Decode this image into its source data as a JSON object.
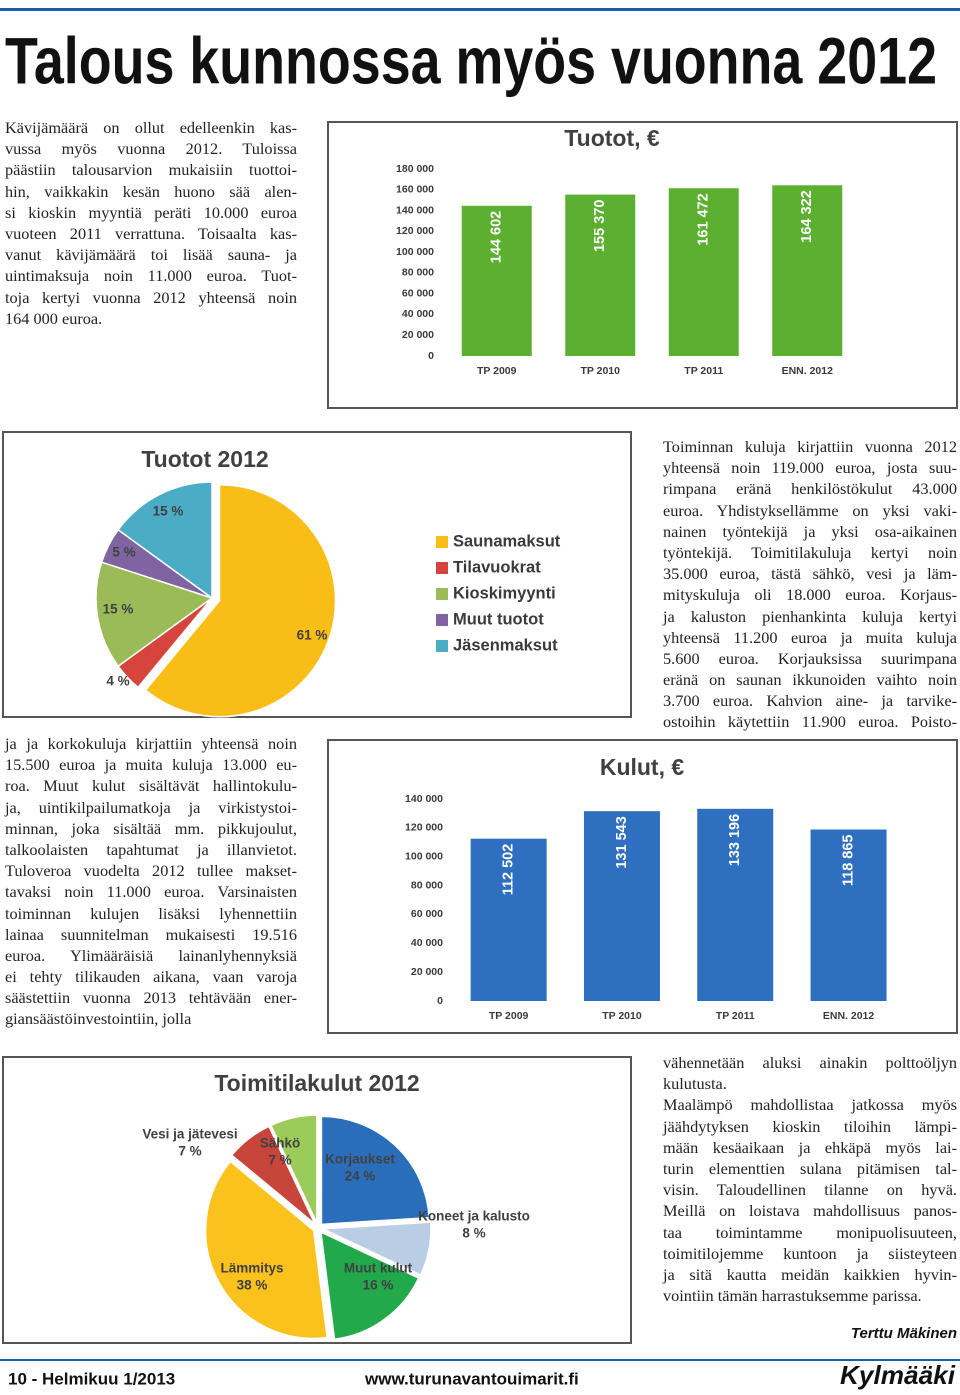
{
  "title": "Talous kunnossa myös vuonna 2012",
  "text_blocks": [
    [
      [
        "Kävijämäärä on ollut edelleenkin kas-",
        "vussa myös vuonna 2012. Tuloissa",
        "päästiin talousarvion mukaisiin tuottoi-",
        "hin, vaikkakin kesän huono sää alen-",
        "si kioskin myyntiä peräti 10.000 euroa",
        "vuoteen 2011 verrattuna. Toisaalta kas-",
        "vanut kävijämäärä toi lisää sauna- ja",
        "uintimaksuja noin 11.000 euroa. Tuot-",
        "toja kertyi vuonna 2012 yhteensä noin",
        "164 000 euroa."
      ]
    ],
    [
      [
        "Toiminnan kuluja kirjattiin vuonna 2012",
        "yhteensä noin 119.000 euroa, josta suu-",
        "rimpana eränä henkilöstökulut 43.000",
        "euroa. Yhdistyksellämme on yksi vaki-",
        "nainen työntekijä ja yksi osa-aikainen",
        "työntekijä. Toimitilakuluja kertyi noin",
        "35.000 euroa, tästä sähkö, vesi ja läm-",
        "mityskuluja oli 18.000 euroa. Korjaus-",
        "ja kaluston pienhankinta kuluja kertyi",
        "yhteensä 11.200 euroa ja muita kuluja",
        "5.600 euroa. Korjauksissa suurimpana",
        "eränä on saunan ikkunoiden vaihto noin",
        "3.700 euroa. Kahvion aine- ja tarvike-",
        "ostoihin käytettiin 11.900 euroa. Poisto-"
      ]
    ],
    [
      [
        "ja ja korkokuluja kirjattiin yhteensä noin",
        "15.500 euroa ja muita kuluja 13.000 eu-",
        "roa. Muut kulut sisältävät hallintokulu-",
        "ja, uintikilpailumatkoja ja virkistystoi-",
        "minnan, joka sisältää mm. pikkujoulut,",
        "talkoolaisten tapahtumat ja illanvietot.",
        "Tuloveroa vuodelta 2012 tullee makset-",
        "tavaksi noin 11.000 euroa. Varsinaisten",
        "toiminnan kulujen lisäksi lyhennettiin",
        "lainaa suunnitelman mukaisesti 19.516",
        "euroa. Ylimääräisiä lainanlyhennyksiä",
        "ei tehty tilikauden aikana, vaan varoja",
        "säästettiin vuonna 2013 tehtävään ener-",
        "giansäästöinvestointiin, jolla"
      ]
    ],
    [
      [
        "vähennetään aluksi ainakin polttoöljyn",
        "kulutusta."
      ],
      [
        "Maalämpö mahdollistaa jatkossa myös",
        "jäähdytyksen kioskin tiloihin lämpi-",
        "mään kesäaikaan ja ehkäpä myös lai-",
        "turin elementtien sulana pitämisen tal-",
        "visin. Taloudellinen tilanne on hyvä.",
        "Meillä on loistava mahdollisuus panos-",
        "taa toimintamme monipuolisuuteen,",
        "toimitilojemme kuntoon ja siisteyteen",
        "ja sitä kautta meidän kaikkien hyvin-",
        "vointiin tämän harrastuksemme parissa."
      ]
    ]
  ],
  "chart_data": [
    {
      "type": "bar",
      "title": "Tuotot, €",
      "categories": [
        "TP 2009",
        "TP 2010",
        "TP 2011",
        "ENN. 2012"
      ],
      "values": [
        144602,
        155370,
        161472,
        164322
      ],
      "value_labels": [
        "144 602",
        "155 370",
        "161 472",
        "164 322"
      ],
      "color": "#5cb030",
      "ylim": [
        0,
        180000
      ],
      "yticks": [
        0,
        {
          "value": 20000,
          "label": "20 000"
        },
        {
          "value": 40000,
          "label": "40 000"
        },
        {
          "value": 60000,
          "label": "60 000"
        },
        {
          "value": 80000,
          "label": "80 000"
        },
        {
          "value": 100000,
          "label": "100 000"
        },
        {
          "value": 120000,
          "label": "120 000"
        },
        {
          "value": 140000,
          "label": "140 000"
        },
        {
          "value": 160000,
          "label": "160 000"
        },
        {
          "value": 180000,
          "label": "180 000"
        }
      ],
      "grid": false
    },
    {
      "type": "pie",
      "title": "Tuotot 2012",
      "categories": [
        "Saunamaksut",
        "Tilavuokrat",
        "Kioskimyynti",
        "Muut tuotot",
        "Jäsenmaksut"
      ],
      "values": [
        61,
        4,
        15,
        5,
        15
      ],
      "value_labels": [
        "61 %",
        "4 %",
        "15 %",
        "5 %",
        "15 %"
      ],
      "colors": [
        "#f9bd17",
        "#d6453d",
        "#9bbb59",
        "#8064a2",
        "#4bacc6"
      ],
      "legend": "right"
    },
    {
      "type": "bar",
      "title": "Kulut, €",
      "categories": [
        "TP 2009",
        "TP 2010",
        "TP 2011",
        "ENN. 2012"
      ],
      "values": [
        112502,
        131543,
        133196,
        118865
      ],
      "value_labels": [
        "112 502",
        "131 543",
        "133 196",
        "118 865"
      ],
      "color": "#2e6fc0",
      "ylim": [
        0,
        140000
      ],
      "yticks": [
        0,
        {
          "value": 20000,
          "label": "20 000"
        },
        {
          "value": 40000,
          "label": "40 000"
        },
        {
          "value": 60000,
          "label": "60 000"
        },
        {
          "value": 80000,
          "label": "80 000"
        },
        {
          "value": 100000,
          "label": "100 000"
        },
        {
          "value": 120000,
          "label": "120 000"
        },
        {
          "value": 140000,
          "label": "140 000"
        }
      ],
      "grid": false
    },
    {
      "type": "pie",
      "title": "Toimitilakulut 2012",
      "categories": [
        "Korjaukset",
        "Koneet ja kalusto",
        "Muut kulut",
        "Lämmitys",
        "Vesi ja jätevesi",
        "Sähkö"
      ],
      "values": [
        24,
        8,
        16,
        38,
        7,
        7
      ],
      "value_labels": [
        "24 %",
        "8 %",
        "16 %",
        "38 %",
        "7 %",
        "7 %"
      ],
      "colors": [
        "#2a6ebb",
        "#b9cde5",
        "#22a94b",
        "#fbc11d",
        "#c8453c",
        "#9bcb5a"
      ],
      "legend": false
    }
  ],
  "byline": "Terttu Mäkinen",
  "footer": {
    "page": "10 - Helmikuu 1/2013",
    "url": "www.turunavantouimarit.fi",
    "logo": "Kylmääki"
  }
}
